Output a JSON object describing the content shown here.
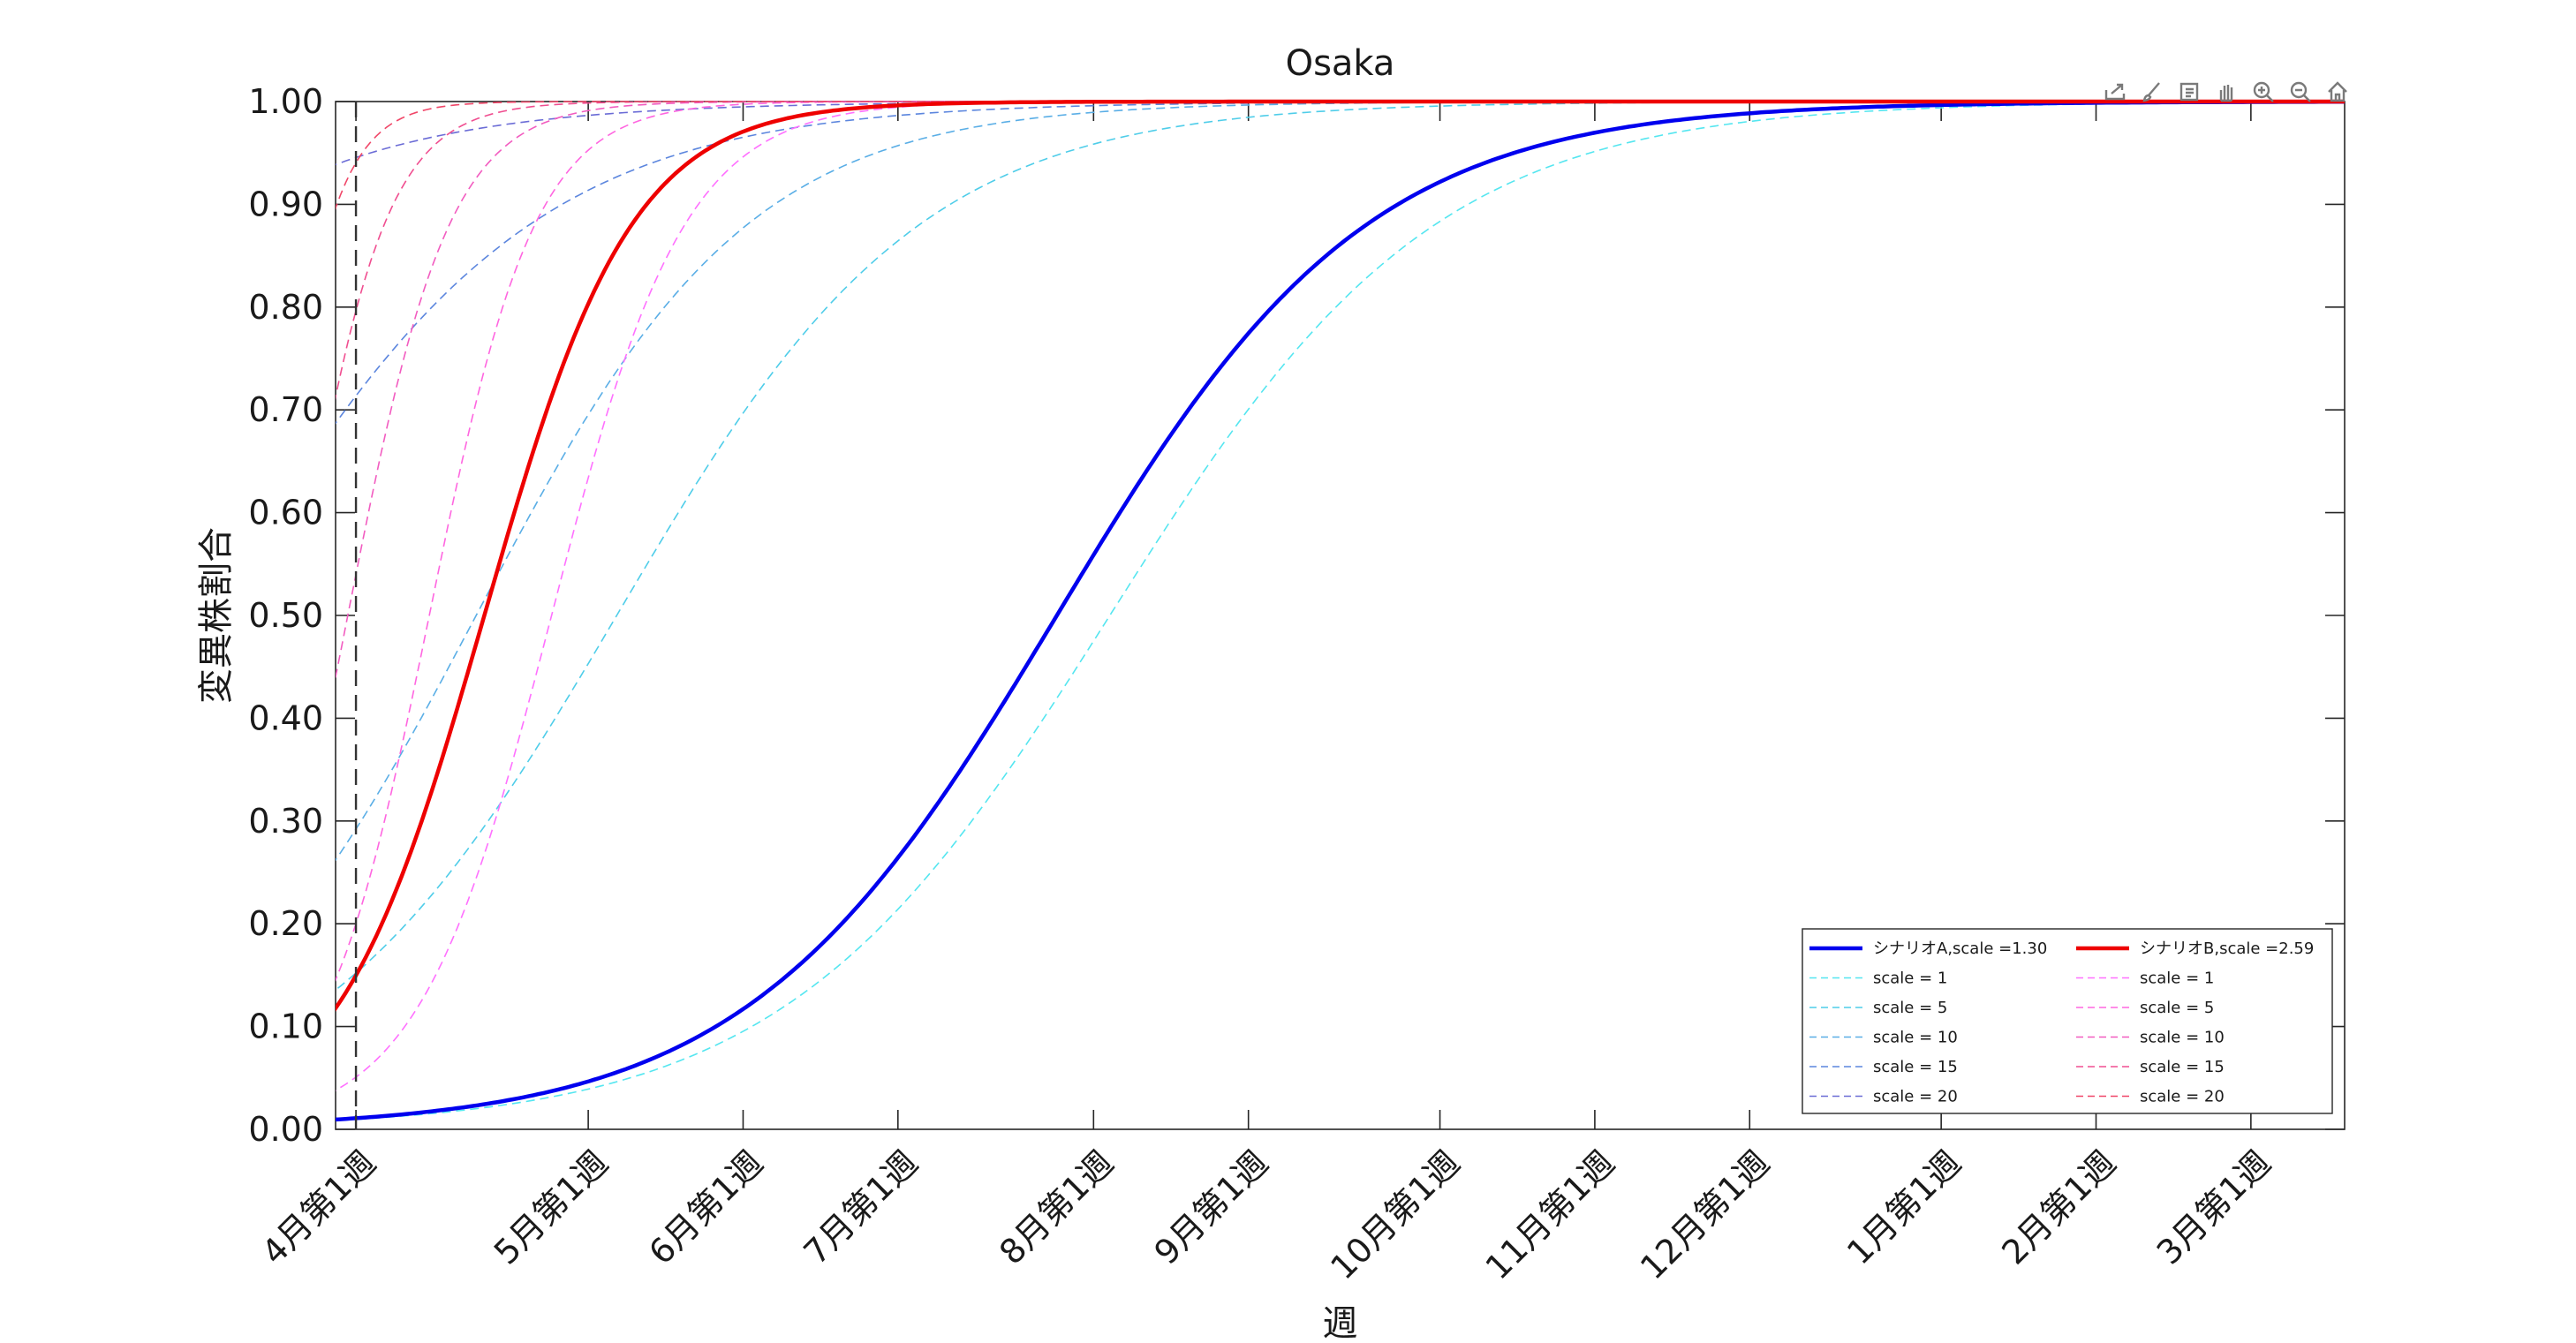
{
  "chart_data": {
    "type": "line",
    "title": "Osaka",
    "xlabel": "週",
    "ylabel": "変異株割合",
    "ylim": [
      0,
      1
    ],
    "xlim": [
      -0.5,
      48.8
    ],
    "grid": false,
    "legend_position": "bottom-right",
    "y_ticks": [
      "0.00",
      "0.10",
      "0.20",
      "0.30",
      "0.40",
      "0.50",
      "0.60",
      "0.70",
      "0.80",
      "0.90",
      "1.00"
    ],
    "x_ticks": [
      {
        "x": 0,
        "label": "4月第1週"
      },
      {
        "x": 5.7,
        "label": "5月第1週"
      },
      {
        "x": 9.5,
        "label": "6月第1週"
      },
      {
        "x": 13.3,
        "label": "7月第1週"
      },
      {
        "x": 18.1,
        "label": "8月第1週"
      },
      {
        "x": 21.9,
        "label": "9月第1週"
      },
      {
        "x": 26.6,
        "label": "10月第1週"
      },
      {
        "x": 30.4,
        "label": "11月第1週"
      },
      {
        "x": 34.2,
        "label": "12月第1週"
      },
      {
        "x": 38.9,
        "label": "1月第1週"
      },
      {
        "x": 42.7,
        "label": "2月第1週"
      },
      {
        "x": 46.5,
        "label": "3月第1週"
      }
    ],
    "vertical_marker_x": 0,
    "x_start": -1,
    "x_end": 48.8,
    "series": [
      {
        "name": "シナリオA,scale =1.30",
        "color": "#0000ee",
        "style": "solid",
        "x0": 17.2,
        "k": 0.2625
      },
      {
        "name": "シナリオB,scale =2.59",
        "color": "#ee0000",
        "style": "solid",
        "x0": 3.15,
        "k": 0.5515
      },
      {
        "name": "scale = 1",
        "color": "#55e6f0",
        "style": "dashed",
        "x0": 18.5,
        "k": 0.25
      },
      {
        "name": "scale = 5",
        "color": "#4fcde9",
        "style": "dashed",
        "x0": 6.4,
        "k": 0.2685
      },
      {
        "name": "scale = 10",
        "color": "#5aaee6",
        "style": "dashed",
        "x0": 2.95,
        "k": 0.3
      },
      {
        "name": "scale = 15",
        "color": "#5c86de",
        "style": "dashed",
        "x0": -3.6,
        "k": 0.2537
      },
      {
        "name": "scale = 20",
        "color": "#6b6cd6",
        "style": "dashed",
        "x0": -11.3,
        "k": 0.2526
      },
      {
        "name": "scale = 1",
        "color": "#ff70ff",
        "style": "dashed",
        "x0": 4.8,
        "k": 0.61
      },
      {
        "name": "scale = 5",
        "color": "#ff66e0",
        "style": "dashed",
        "x0": 1.8,
        "k": 0.77
      },
      {
        "name": "scale = 10",
        "color": "#f25cc0",
        "style": "dashed",
        "x0": -0.2,
        "k": 0.8
      },
      {
        "name": "scale = 15",
        "color": "#f04e90",
        "style": "dashed",
        "x0": -1.5,
        "k": 0.91
      },
      {
        "name": "scale = 20",
        "color": "#f04668",
        "style": "dashed",
        "x0": -2.3,
        "k": 1.2
      }
    ]
  },
  "toolbar": {
    "icons": [
      "export-icon",
      "brush-icon",
      "datatip-icon",
      "pan-icon",
      "zoom-in-icon",
      "zoom-out-icon",
      "home-icon"
    ]
  }
}
